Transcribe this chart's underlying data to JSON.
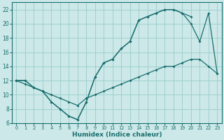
{
  "xlabel": "Humidex (Indice chaleur)",
  "background_color": "#cce8e8",
  "grid_color": "#99cccc",
  "line_color": "#1a6e6e",
  "xlim": [
    -0.5,
    23.5
  ],
  "ylim": [
    6,
    23
  ],
  "xticks": [
    0,
    1,
    2,
    3,
    4,
    5,
    6,
    7,
    8,
    9,
    10,
    11,
    12,
    13,
    14,
    15,
    16,
    17,
    18,
    19,
    20,
    21,
    22,
    23
  ],
  "yticks": [
    6,
    8,
    10,
    12,
    14,
    16,
    18,
    20,
    22
  ],
  "line1_x": [
    0,
    1,
    2,
    3,
    4,
    5,
    6,
    7,
    8,
    9,
    10,
    11,
    12,
    13,
    14,
    15,
    16,
    17,
    18,
    19,
    20
  ],
  "line1_y": [
    12,
    12,
    11,
    10.5,
    9,
    8,
    7,
    6.5,
    9,
    12.5,
    14.5,
    15,
    16.5,
    17.5,
    20.5,
    21,
    21.5,
    22,
    22,
    21.5,
    21
  ],
  "line2_x": [
    0,
    1,
    2,
    3,
    4,
    5,
    6,
    7,
    8,
    9,
    10,
    11,
    12,
    13,
    14,
    15,
    16,
    17,
    18,
    19,
    20,
    21,
    22,
    23
  ],
  "line2_y": [
    12,
    12,
    11,
    10.5,
    9,
    8,
    7,
    6.5,
    9,
    12.5,
    14.5,
    15,
    16.5,
    17.5,
    20.5,
    21,
    21.5,
    22,
    22,
    21.5,
    20,
    17.5,
    21.5,
    13
  ],
  "line3_x": [
    0,
    1,
    2,
    3,
    4,
    5,
    6,
    7,
    8,
    9,
    10,
    11,
    12,
    13,
    14,
    15,
    16,
    17,
    18,
    19,
    20,
    21,
    22,
    23
  ],
  "line3_y": [
    12,
    11.5,
    11,
    10.5,
    10,
    9.5,
    9.0,
    8.5,
    9.5,
    10,
    10.5,
    11,
    11.5,
    12,
    12.5,
    13,
    13.5,
    14,
    14,
    14.5,
    15,
    15,
    14,
    13
  ]
}
